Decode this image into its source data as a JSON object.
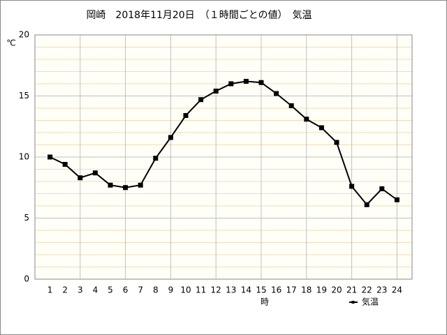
{
  "chart_data": {
    "type": "line",
    "title": "岡崎　2018年11月20日　（１時間ごとの値）　気温",
    "y_label": "℃",
    "x_label": "時",
    "x": [
      1,
      2,
      3,
      4,
      5,
      6,
      7,
      8,
      9,
      10,
      11,
      12,
      13,
      14,
      15,
      16,
      17,
      18,
      19,
      20,
      21,
      22,
      23,
      24
    ],
    "series": [
      {
        "name": "気温",
        "color": "#000000",
        "values": [
          10.0,
          9.4,
          8.3,
          8.7,
          7.7,
          7.5,
          7.7,
          9.9,
          11.6,
          13.4,
          14.7,
          15.4,
          16.0,
          16.2,
          16.1,
          15.2,
          14.2,
          13.1,
          12.4,
          11.2,
          7.6,
          6.1,
          7.4,
          6.5
        ]
      }
    ],
    "xlim": [
      0,
      25
    ],
    "ylim": [
      0,
      20
    ],
    "xticks": [
      1,
      2,
      3,
      4,
      5,
      6,
      7,
      8,
      9,
      10,
      11,
      12,
      13,
      14,
      15,
      16,
      17,
      18,
      19,
      20,
      21,
      22,
      23,
      24
    ],
    "yticks": [
      0,
      5,
      10,
      15,
      20
    ],
    "x_grid": [
      3,
      6,
      9,
      12,
      15,
      18,
      21,
      24
    ],
    "minor_yticks": [
      1,
      2,
      3,
      4,
      6,
      7,
      8,
      9,
      11,
      12,
      13,
      14,
      16,
      17,
      18,
      19
    ],
    "grid": true,
    "legend": "bottom-right"
  }
}
